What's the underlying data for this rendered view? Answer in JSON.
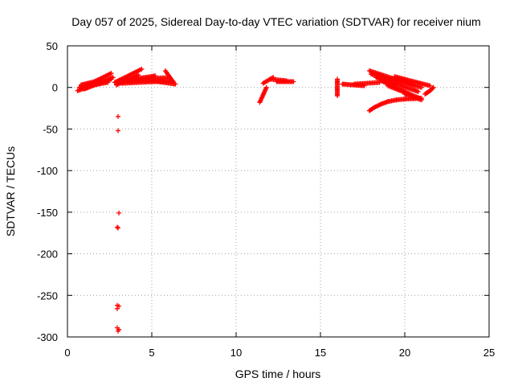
{
  "chart_data": {
    "type": "scatter",
    "title": "Day 057 of 2025, Sidereal Day-to-day VTEC variation (SDTVAR) for receiver nium",
    "xlabel": "GPS time / hours",
    "ylabel": "SDTVAR / TECUs",
    "xlim": [
      0,
      25
    ],
    "ylim": [
      -300,
      50
    ],
    "xticks": [
      0,
      5,
      10,
      15,
      20,
      25
    ],
    "yticks": [
      50,
      0,
      -50,
      -100,
      -150,
      -200,
      -250,
      -300
    ],
    "xtick_labels": [
      "0",
      "5",
      "10",
      "15",
      "20",
      "25"
    ],
    "ytick_labels": [
      "50",
      "0",
      "-50",
      "-100",
      "-150",
      "-200",
      "-250",
      "-300"
    ],
    "grid": true,
    "marker": "+",
    "series": [
      {
        "name": "SDTVAR",
        "color": "#ff0000",
        "segments": [
          {
            "x": [
              0.6,
              2.6
            ],
            "y": [
              -4,
              10
            ]
          },
          {
            "x": [
              0.7,
              2.4
            ],
            "y": [
              0,
              6
            ]
          },
          {
            "x": [
              0.8,
              2.0
            ],
            "y": [
              3,
              9
            ]
          },
          {
            "x": [
              1.0,
              2.7
            ],
            "y": [
              -2,
              12
            ]
          },
          {
            "x": [
              1.5,
              2.6
            ],
            "y": [
              6,
              17
            ]
          },
          {
            "x": [
              2.8,
              4.4
            ],
            "y": [
              6,
              22
            ]
          },
          {
            "x": [
              2.9,
              4.2
            ],
            "y": [
              3,
              15
            ]
          },
          {
            "x": [
              3.0,
              6.0
            ],
            "y": [
              8,
              12
            ]
          },
          {
            "x": [
              3.2,
              6.2
            ],
            "y": [
              5,
              8
            ]
          },
          {
            "x": [
              4.0,
              5.2
            ],
            "y": [
              10,
              14
            ]
          },
          {
            "x": [
              5.8,
              6.3
            ],
            "y": [
              20,
              6
            ]
          },
          {
            "x": [
              5.0,
              6.4
            ],
            "y": [
              8,
              4
            ]
          },
          {
            "x": [
              11.4,
              11.8
            ],
            "y": [
              -18,
              0
            ]
          },
          {
            "x": [
              11.6,
              12.2
            ],
            "y": [
              5,
              12
            ]
          },
          {
            "x": [
              12.0,
              13.0
            ],
            "y": [
              10,
              8
            ]
          },
          {
            "x": [
              12.4,
              13.4
            ],
            "y": [
              7,
              7
            ]
          },
          {
            "x": [
              16.0,
              16.0
            ],
            "y": [
              -10,
              10
            ]
          },
          {
            "x": [
              16.3,
              17.6
            ],
            "y": [
              4,
              2
            ]
          },
          {
            "x": [
              17.0,
              18.5
            ],
            "y": [
              4,
              6
            ]
          },
          {
            "x": [
              17.9,
              20.5
            ],
            "y": [
              20,
              3
            ]
          },
          {
            "x": [
              18.0,
              21.0
            ],
            "y": [
              16,
              0
            ]
          },
          {
            "x": [
              18.3,
              20.8
            ],
            "y": [
              12,
              -5
            ]
          },
          {
            "x": [
              18.6,
              20.4
            ],
            "y": [
              8,
              -9
            ]
          },
          {
            "x": [
              19.0,
              20.9
            ],
            "y": [
              2,
              -13
            ]
          },
          {
            "x": [
              19.4,
              21.5
            ],
            "y": [
              13,
              2
            ]
          },
          {
            "x": [
              20.0,
              21.0
            ],
            "y": [
              -8,
              -15
            ]
          }
        ],
        "curves": [
          {
            "x": [
              17.9,
              18.2,
              18.6,
              19.0,
              19.5,
              20.0,
              20.5,
              21.0
            ],
            "y": [
              -28,
              -24,
              -20,
              -17,
              -15,
              -14,
              -13.5,
              -13
            ]
          },
          {
            "x": [
              21.2,
              21.35,
              21.5,
              21.6,
              21.7
            ],
            "y": [
              -8,
              -6,
              -4,
              -2,
              0
            ]
          }
        ],
        "points": [
          {
            "x": 3.0,
            "y": -35
          },
          {
            "x": 3.0,
            "y": -52
          },
          {
            "x": 3.05,
            "y": -151
          },
          {
            "x": 2.95,
            "y": -168
          },
          {
            "x": 3.0,
            "y": -169
          },
          {
            "x": 2.95,
            "y": -262
          },
          {
            "x": 3.05,
            "y": -263
          },
          {
            "x": 2.95,
            "y": -266
          },
          {
            "x": 2.95,
            "y": -289
          },
          {
            "x": 3.05,
            "y": -291
          },
          {
            "x": 3.0,
            "y": -293
          }
        ]
      }
    ]
  }
}
